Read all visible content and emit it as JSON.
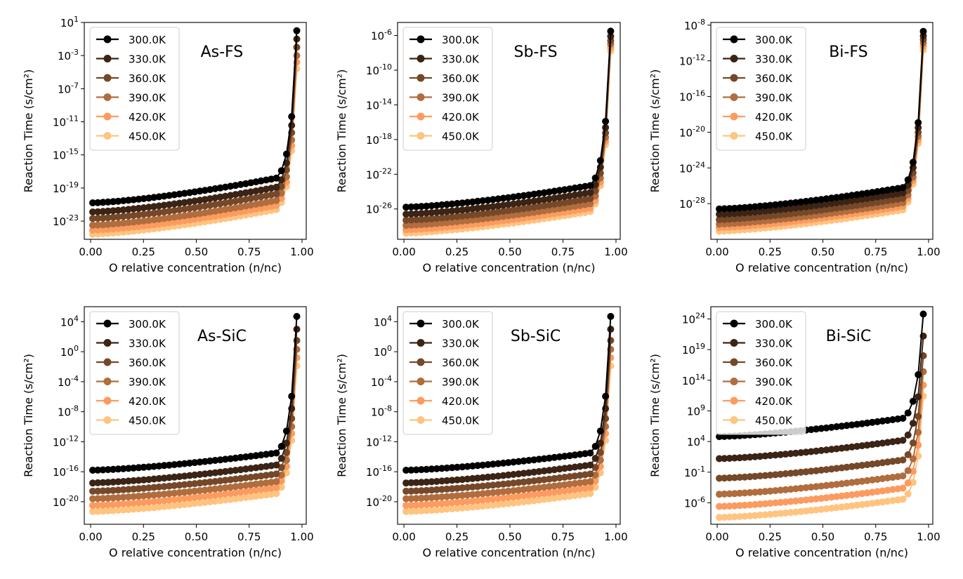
{
  "chart_data": [
    {
      "type": "line",
      "title": "As-FS",
      "xlabel": "O relative concentration (n/nc)",
      "ylabel": "Reaction Time (s/cm²)",
      "yscale": "log",
      "xlim": [
        -0.03,
        1.02
      ],
      "ylim_exp": [
        -25.2,
        1.0
      ],
      "x_ticks": [
        0.0,
        0.25,
        0.5,
        0.75,
        1.0
      ],
      "x_tick_labels": [
        "0.00",
        "0.25",
        "0.50",
        "0.75",
        "1.00"
      ],
      "y_tick_exponents": [
        1,
        -3,
        -7,
        -11,
        -15,
        -19,
        -23
      ],
      "legend_placement": "top-left",
      "series": [
        {
          "name": "300.0K",
          "color": "#000000",
          "log10_start": -20.8,
          "log10_knee": -17.8,
          "log10_end": 0.0
        },
        {
          "name": "330.0K",
          "color": "#3b2415",
          "log10_start": -21.9,
          "log10_knee": -18.9,
          "log10_end": -1.0
        },
        {
          "name": "360.0K",
          "color": "#754829",
          "log10_start": -22.7,
          "log10_knee": -19.7,
          "log10_end": -2.0
        },
        {
          "name": "390.0K",
          "color": "#b06d3e",
          "log10_start": -23.5,
          "log10_knee": -20.5,
          "log10_end": -3.0
        },
        {
          "name": "420.0K",
          "color": "#fc9b60",
          "log10_start": -24.1,
          "log10_knee": -21.1,
          "log10_end": -3.8
        },
        {
          "name": "450.0K",
          "color": "#ffc47f",
          "log10_start": -24.6,
          "log10_knee": -21.6,
          "log10_end": -4.6
        }
      ]
    },
    {
      "type": "line",
      "title": "Sb-FS",
      "xlabel": "O relative concentration (n/nc)",
      "ylabel": "Reaction Time (s/cm²)",
      "yscale": "log",
      "xlim": [
        -0.03,
        1.02
      ],
      "ylim_exp": [
        -29.5,
        -4.5
      ],
      "x_ticks": [
        0.0,
        0.25,
        0.5,
        0.75,
        1.0
      ],
      "x_tick_labels": [
        "0.00",
        "0.25",
        "0.50",
        "0.75",
        "1.00"
      ],
      "y_tick_exponents": [
        -6,
        -10,
        -14,
        -18,
        -22,
        -26
      ],
      "legend_placement": "top-left",
      "series": [
        {
          "name": "300.0K",
          "color": "#000000",
          "log10_start": -25.8,
          "log10_knee": -23.3,
          "log10_end": -5.5
        },
        {
          "name": "330.0K",
          "color": "#3b2415",
          "log10_start": -26.6,
          "log10_knee": -24.1,
          "log10_end": -6.1
        },
        {
          "name": "360.0K",
          "color": "#754829",
          "log10_start": -27.3,
          "log10_knee": -24.8,
          "log10_end": -6.6
        },
        {
          "name": "390.0K",
          "color": "#b06d3e",
          "log10_start": -27.9,
          "log10_knee": -25.4,
          "log10_end": -7.0
        },
        {
          "name": "420.0K",
          "color": "#fc9b60",
          "log10_start": -28.4,
          "log10_knee": -25.9,
          "log10_end": -7.4
        },
        {
          "name": "450.0K",
          "color": "#ffc47f",
          "log10_start": -28.8,
          "log10_knee": -26.3,
          "log10_end": -7.8
        }
      ]
    },
    {
      "type": "line",
      "title": "Bi-FS",
      "xlabel": "O relative concentration (n/nc)",
      "ylabel": "Reaction Time (s/cm²)",
      "yscale": "log",
      "xlim": [
        -0.03,
        1.02
      ],
      "ylim_exp": [
        -32.0,
        -7.7
      ],
      "x_ticks": [
        0.0,
        0.25,
        0.5,
        0.75,
        1.0
      ],
      "x_tick_labels": [
        "0.00",
        "0.25",
        "0.50",
        "0.75",
        "1.00"
      ],
      "y_tick_exponents": [
        -8,
        -12,
        -16,
        -20,
        -24,
        -28
      ],
      "legend_placement": "top-left",
      "series": [
        {
          "name": "300.0K",
          "color": "#000000",
          "log10_start": -28.6,
          "log10_knee": -26.2,
          "log10_end": -8.7
        },
        {
          "name": "330.0K",
          "color": "#3b2415",
          "log10_start": -29.2,
          "log10_knee": -26.8,
          "log10_end": -9.2
        },
        {
          "name": "360.0K",
          "color": "#754829",
          "log10_start": -29.8,
          "log10_knee": -27.4,
          "log10_end": -9.6
        },
        {
          "name": "390.0K",
          "color": "#b06d3e",
          "log10_start": -30.3,
          "log10_knee": -27.9,
          "log10_end": -10.0
        },
        {
          "name": "420.0K",
          "color": "#fc9b60",
          "log10_start": -30.7,
          "log10_knee": -28.3,
          "log10_end": -10.4
        },
        {
          "name": "450.0K",
          "color": "#ffc47f",
          "log10_start": -31.1,
          "log10_knee": -28.7,
          "log10_end": -10.8
        }
      ]
    },
    {
      "type": "line",
      "title": "As-SiC",
      "xlabel": "O relative concentration (n/nc)",
      "ylabel": "Reaction Time (s/cm²)",
      "yscale": "log",
      "xlim": [
        -0.03,
        1.02
      ],
      "ylim_exp": [
        -23.0,
        6.0
      ],
      "x_ticks": [
        0.0,
        0.25,
        0.5,
        0.75,
        1.0
      ],
      "x_tick_labels": [
        "0.00",
        "0.25",
        "0.50",
        "0.75",
        "1.00"
      ],
      "y_tick_exponents": [
        4,
        0,
        -4,
        -8,
        -12,
        -16,
        -20
      ],
      "legend_placement": "top-left",
      "series": [
        {
          "name": "300.0K",
          "color": "#000000",
          "log10_start": -15.8,
          "log10_knee": -13.5,
          "log10_end": 4.7
        },
        {
          "name": "330.0K",
          "color": "#3b2415",
          "log10_start": -17.5,
          "log10_knee": -15.1,
          "log10_end": 3.0
        },
        {
          "name": "360.0K",
          "color": "#754829",
          "log10_start": -18.6,
          "log10_knee": -16.3,
          "log10_end": 1.5
        },
        {
          "name": "390.0K",
          "color": "#b06d3e",
          "log10_start": -19.6,
          "log10_knee": -17.3,
          "log10_end": 0.3
        },
        {
          "name": "420.0K",
          "color": "#fc9b60",
          "log10_start": -20.5,
          "log10_knee": -18.1,
          "log10_end": -0.8
        },
        {
          "name": "450.0K",
          "color": "#ffc47f",
          "log10_start": -21.3,
          "log10_knee": -18.9,
          "log10_end": -1.9
        }
      ]
    },
    {
      "type": "line",
      "title": "Sb-SiC",
      "xlabel": "O relative concentration (n/nc)",
      "ylabel": "Reaction Time (s/cm²)",
      "yscale": "log",
      "xlim": [
        -0.03,
        1.02
      ],
      "ylim_exp": [
        -23.0,
        6.0
      ],
      "x_ticks": [
        0.0,
        0.25,
        0.5,
        0.75,
        1.0
      ],
      "x_tick_labels": [
        "0.00",
        "0.25",
        "0.50",
        "0.75",
        "1.00"
      ],
      "y_tick_exponents": [
        4,
        0,
        -4,
        -8,
        -12,
        -16,
        -20
      ],
      "legend_placement": "top-left",
      "series": [
        {
          "name": "300.0K",
          "color": "#000000",
          "log10_start": -15.8,
          "log10_knee": -13.5,
          "log10_end": 4.7
        },
        {
          "name": "330.0K",
          "color": "#3b2415",
          "log10_start": -17.5,
          "log10_knee": -15.1,
          "log10_end": 3.0
        },
        {
          "name": "360.0K",
          "color": "#754829",
          "log10_start": -18.6,
          "log10_knee": -16.3,
          "log10_end": 1.5
        },
        {
          "name": "390.0K",
          "color": "#b06d3e",
          "log10_start": -19.6,
          "log10_knee": -17.3,
          "log10_end": 0.3
        },
        {
          "name": "420.0K",
          "color": "#fc9b60",
          "log10_start": -20.5,
          "log10_knee": -18.1,
          "log10_end": -0.8
        },
        {
          "name": "450.0K",
          "color": "#ffc47f",
          "log10_start": -21.3,
          "log10_knee": -18.9,
          "log10_end": -1.9
        }
      ]
    },
    {
      "type": "line",
      "title": "Bi-SiC",
      "xlabel": "O relative concentration (n/nc)",
      "ylabel": "Reaction Time (s/cm²)",
      "yscale": "log",
      "xlim": [
        -0.03,
        1.02
      ],
      "ylim_exp": [
        -9.5,
        26.0
      ],
      "x_ticks": [
        0.0,
        0.25,
        0.5,
        0.75,
        1.0
      ],
      "x_tick_labels": [
        "0.00",
        "0.25",
        "0.50",
        "0.75",
        "1.00"
      ],
      "y_tick_exponents": [
        24,
        19,
        14,
        9,
        4,
        -1,
        -6
      ],
      "legend_placement": "top-left",
      "series": [
        {
          "name": "300.0K",
          "color": "#000000",
          "log10_start": 4.8,
          "log10_knee": 7.8,
          "log10_end": 24.8
        },
        {
          "name": "330.0K",
          "color": "#3b2415",
          "log10_start": 1.2,
          "log10_knee": 4.2,
          "log10_end": 21.2
        },
        {
          "name": "360.0K",
          "color": "#754829",
          "log10_start": -2.0,
          "log10_knee": 1.0,
          "log10_end": 18.0
        },
        {
          "name": "390.0K",
          "color": "#b06d3e",
          "log10_start": -4.6,
          "log10_knee": -1.6,
          "log10_end": 15.4
        },
        {
          "name": "420.0K",
          "color": "#fc9b60",
          "log10_start": -6.6,
          "log10_knee": -3.6,
          "log10_end": 13.2
        },
        {
          "name": "450.0K",
          "color": "#ffc47f",
          "log10_start": -8.4,
          "log10_knee": -5.4,
          "log10_end": 11.4
        }
      ]
    }
  ]
}
